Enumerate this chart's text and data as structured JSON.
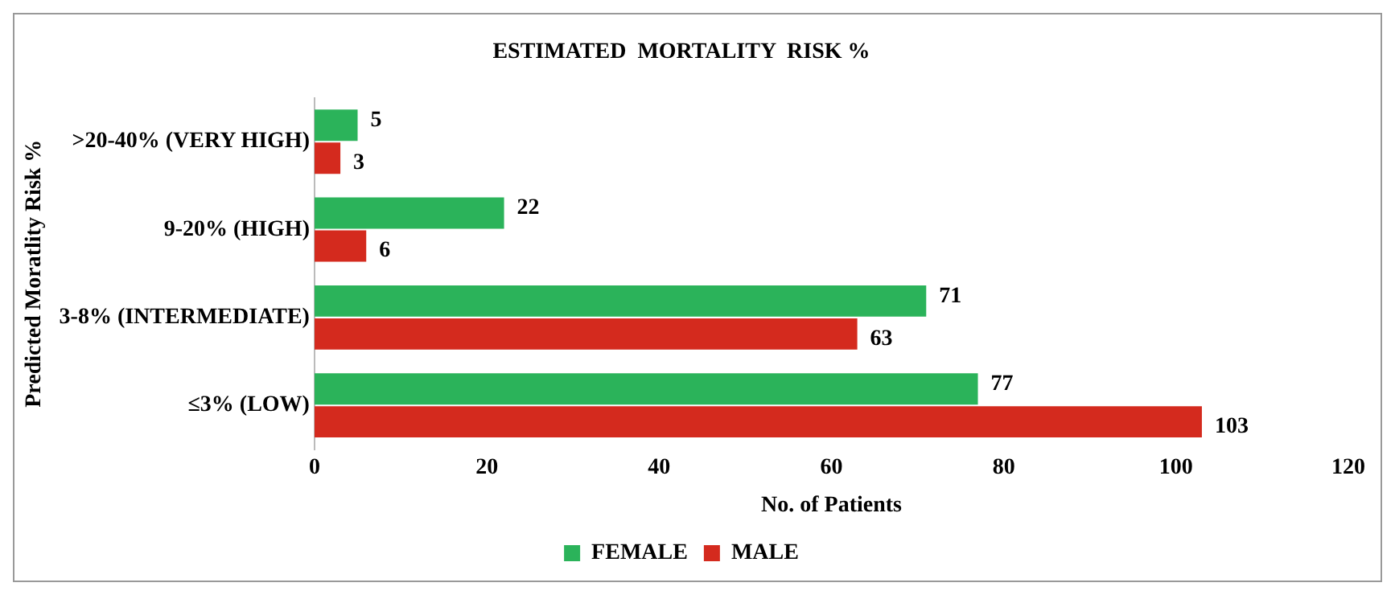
{
  "chart_data": {
    "type": "bar",
    "orientation": "horizontal",
    "title": "ESTIMATED  MORTALITY  RISK %",
    "xlabel": "No. of Patients",
    "ylabel": "Predicted Moratlity Risk %",
    "categories": [
      ">20-40% (VERY HIGH)",
      "9-20% (HIGH)",
      "3-8% (INTERMEDIATE)",
      "≤3% (LOW)"
    ],
    "series": [
      {
        "name": "FEMALE",
        "color": "#2bb35a",
        "values": [
          5,
          22,
          71,
          77
        ]
      },
      {
        "name": "MALE",
        "color": "#d42a1e",
        "values": [
          3,
          6,
          63,
          103
        ]
      }
    ],
    "xlim": [
      0,
      120
    ],
    "xticks": [
      0,
      20,
      40,
      60,
      80,
      100,
      120
    ],
    "grid": false,
    "legend": "bottom",
    "data_labels": true
  }
}
